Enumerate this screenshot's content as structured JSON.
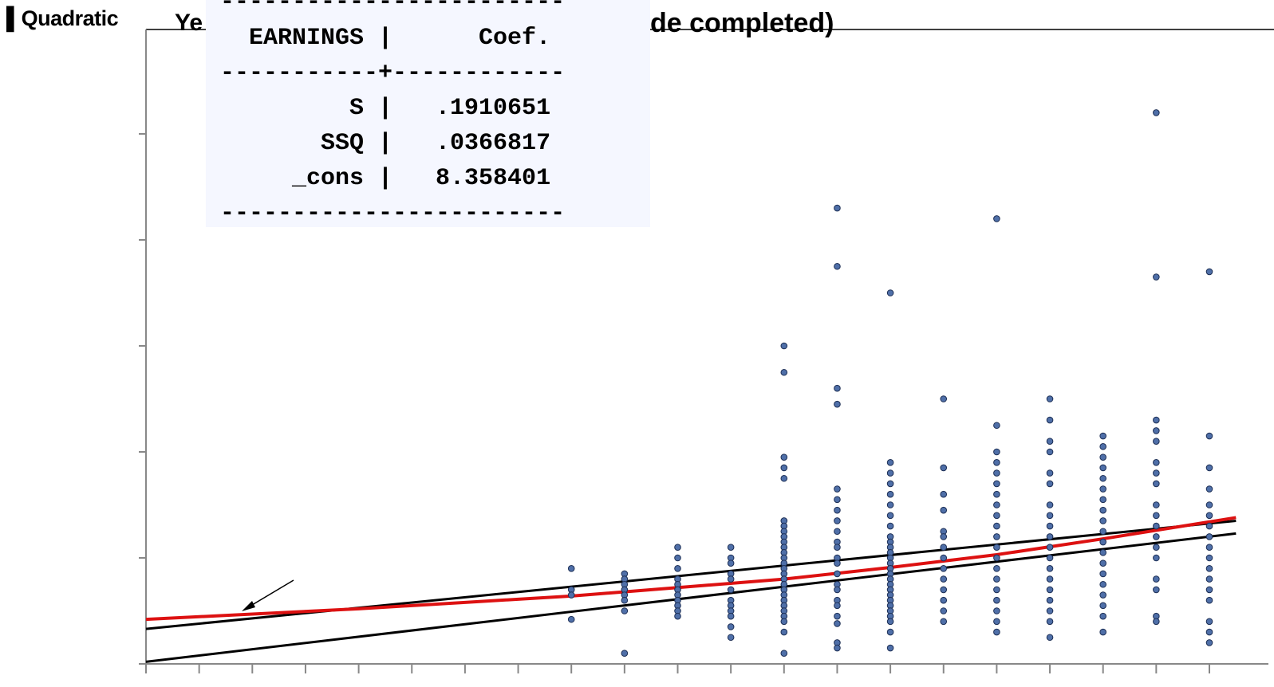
{
  "slide": {
    "top_left_label": "▌Quadratic",
    "title_fragment_left": "Ye",
    "title_fragment_right": "de completed)"
  },
  "regression_table": {
    "divider": "------------------------",
    "header": "  EARNINGS |      Coef.",
    "header_divider": "-----------+------------",
    "rows": [
      {
        "var": "S",
        "coef": ".1910651"
      },
      {
        "var": "SSQ",
        "coef": ".0366817"
      },
      {
        "var": "_cons",
        "coef": "8.358401"
      }
    ],
    "row_lines": [
      "         S |   .1910651",
      "       SSQ |   .0366817",
      "     _cons |   8.358401"
    ]
  },
  "chart_data": {
    "type": "scatter",
    "x_tick_count": 21,
    "y_tick_count": 6,
    "xlim": [
      0,
      20.5
    ],
    "ylim": [
      0,
      6
    ],
    "scatter_color": "#4f6fa8",
    "series": [
      {
        "type": "scatter",
        "points": [
          [
            8,
            0.9
          ],
          [
            8,
            0.7
          ],
          [
            8,
            0.65
          ],
          [
            8,
            0.42
          ],
          [
            9,
            0.85
          ],
          [
            9,
            0.8
          ],
          [
            9,
            0.75
          ],
          [
            9,
            0.7
          ],
          [
            9,
            0.65
          ],
          [
            9,
            0.6
          ],
          [
            9,
            0.5
          ],
          [
            9,
            0.1
          ],
          [
            10,
            1.1
          ],
          [
            10,
            1.0
          ],
          [
            10,
            0.9
          ],
          [
            10,
            0.8
          ],
          [
            10,
            0.75
          ],
          [
            10,
            0.7
          ],
          [
            10,
            0.65
          ],
          [
            10,
            0.6
          ],
          [
            10,
            0.55
          ],
          [
            10,
            0.5
          ],
          [
            10,
            0.45
          ],
          [
            11,
            1.1
          ],
          [
            11,
            1.0
          ],
          [
            11,
            0.95
          ],
          [
            11,
            0.85
          ],
          [
            11,
            0.8
          ],
          [
            11,
            0.7
          ],
          [
            11,
            0.6
          ],
          [
            11,
            0.55
          ],
          [
            11,
            0.5
          ],
          [
            11,
            0.45
          ],
          [
            11,
            0.35
          ],
          [
            11,
            0.25
          ],
          [
            12,
            3.0
          ],
          [
            12,
            2.75
          ],
          [
            12,
            1.95
          ],
          [
            12,
            1.85
          ],
          [
            12,
            1.75
          ],
          [
            12,
            1.35
          ],
          [
            12,
            1.3
          ],
          [
            12,
            1.25
          ],
          [
            12,
            1.2
          ],
          [
            12,
            1.15
          ],
          [
            12,
            1.1
          ],
          [
            12,
            1.05
          ],
          [
            12,
            1.0
          ],
          [
            12,
            0.95
          ],
          [
            12,
            0.9
          ],
          [
            12,
            0.85
          ],
          [
            12,
            0.8
          ],
          [
            12,
            0.75
          ],
          [
            12,
            0.7
          ],
          [
            12,
            0.65
          ],
          [
            12,
            0.6
          ],
          [
            12,
            0.55
          ],
          [
            12,
            0.5
          ],
          [
            12,
            0.45
          ],
          [
            12,
            0.4
          ],
          [
            12,
            0.3
          ],
          [
            12,
            0.1
          ],
          [
            13,
            4.3
          ],
          [
            13,
            3.75
          ],
          [
            13,
            2.6
          ],
          [
            13,
            2.45
          ],
          [
            13,
            1.65
          ],
          [
            13,
            1.55
          ],
          [
            13,
            1.45
          ],
          [
            13,
            1.35
          ],
          [
            13,
            1.25
          ],
          [
            13,
            1.15
          ],
          [
            13,
            1.1
          ],
          [
            13,
            1.0
          ],
          [
            13,
            0.95
          ],
          [
            13,
            0.85
          ],
          [
            13,
            0.75
          ],
          [
            13,
            0.7
          ],
          [
            13,
            0.6
          ],
          [
            13,
            0.55
          ],
          [
            13,
            0.45
          ],
          [
            13,
            0.38
          ],
          [
            13,
            0.2
          ],
          [
            13,
            0.15
          ],
          [
            14,
            3.5
          ],
          [
            14,
            1.9
          ],
          [
            14,
            1.8
          ],
          [
            14,
            1.7
          ],
          [
            14,
            1.6
          ],
          [
            14,
            1.5
          ],
          [
            14,
            1.4
          ],
          [
            14,
            1.3
          ],
          [
            14,
            1.2
          ],
          [
            14,
            1.15
          ],
          [
            14,
            1.1
          ],
          [
            14,
            1.05
          ],
          [
            14,
            1.0
          ],
          [
            14,
            0.95
          ],
          [
            14,
            0.9
          ],
          [
            14,
            0.85
          ],
          [
            14,
            0.8
          ],
          [
            14,
            0.75
          ],
          [
            14,
            0.7
          ],
          [
            14,
            0.65
          ],
          [
            14,
            0.6
          ],
          [
            14,
            0.55
          ],
          [
            14,
            0.5
          ],
          [
            14,
            0.45
          ],
          [
            14,
            0.4
          ],
          [
            14,
            0.3
          ],
          [
            14,
            0.15
          ],
          [
            15,
            2.5
          ],
          [
            15,
            1.85
          ],
          [
            15,
            1.6
          ],
          [
            15,
            1.45
          ],
          [
            15,
            1.25
          ],
          [
            15,
            1.2
          ],
          [
            15,
            1.1
          ],
          [
            15,
            1.0
          ],
          [
            15,
            0.9
          ],
          [
            15,
            0.8
          ],
          [
            15,
            0.7
          ],
          [
            15,
            0.6
          ],
          [
            15,
            0.5
          ],
          [
            15,
            0.4
          ],
          [
            16,
            4.2
          ],
          [
            16,
            2.25
          ],
          [
            16,
            2.0
          ],
          [
            16,
            1.9
          ],
          [
            16,
            1.8
          ],
          [
            16,
            1.7
          ],
          [
            16,
            1.6
          ],
          [
            16,
            1.5
          ],
          [
            16,
            1.4
          ],
          [
            16,
            1.3
          ],
          [
            16,
            1.2
          ],
          [
            16,
            1.1
          ],
          [
            16,
            1.0
          ],
          [
            16,
            0.9
          ],
          [
            16,
            0.8
          ],
          [
            16,
            0.7
          ],
          [
            16,
            0.6
          ],
          [
            16,
            0.5
          ],
          [
            16,
            0.4
          ],
          [
            16,
            0.3
          ],
          [
            17,
            2.5
          ],
          [
            17,
            2.3
          ],
          [
            17,
            2.1
          ],
          [
            17,
            2.0
          ],
          [
            17,
            1.8
          ],
          [
            17,
            1.7
          ],
          [
            17,
            1.5
          ],
          [
            17,
            1.4
          ],
          [
            17,
            1.3
          ],
          [
            17,
            1.2
          ],
          [
            17,
            1.1
          ],
          [
            17,
            1.0
          ],
          [
            17,
            0.9
          ],
          [
            17,
            0.8
          ],
          [
            17,
            0.7
          ],
          [
            17,
            0.6
          ],
          [
            17,
            0.5
          ],
          [
            17,
            0.4
          ],
          [
            17,
            0.25
          ],
          [
            18,
            2.15
          ],
          [
            18,
            2.05
          ],
          [
            18,
            1.95
          ],
          [
            18,
            1.85
          ],
          [
            18,
            1.75
          ],
          [
            18,
            1.65
          ],
          [
            18,
            1.55
          ],
          [
            18,
            1.45
          ],
          [
            18,
            1.35
          ],
          [
            18,
            1.25
          ],
          [
            18,
            1.15
          ],
          [
            18,
            1.05
          ],
          [
            18,
            0.95
          ],
          [
            18,
            0.85
          ],
          [
            18,
            0.75
          ],
          [
            18,
            0.65
          ],
          [
            18,
            0.55
          ],
          [
            18,
            0.45
          ],
          [
            18,
            0.3
          ],
          [
            19,
            5.2
          ],
          [
            19,
            3.65
          ],
          [
            19,
            2.3
          ],
          [
            19,
            2.2
          ],
          [
            19,
            2.1
          ],
          [
            19,
            1.9
          ],
          [
            19,
            1.8
          ],
          [
            19,
            1.7
          ],
          [
            19,
            1.5
          ],
          [
            19,
            1.4
          ],
          [
            19,
            1.3
          ],
          [
            19,
            1.2
          ],
          [
            19,
            1.1
          ],
          [
            19,
            1.0
          ],
          [
            19,
            0.8
          ],
          [
            19,
            0.7
          ],
          [
            19,
            0.45
          ],
          [
            19,
            0.4
          ],
          [
            20,
            3.7
          ],
          [
            20,
            2.15
          ],
          [
            20,
            1.85
          ],
          [
            20,
            1.65
          ],
          [
            20,
            1.5
          ],
          [
            20,
            1.4
          ],
          [
            20,
            1.3
          ],
          [
            20,
            1.2
          ],
          [
            20,
            1.1
          ],
          [
            20,
            1.0
          ],
          [
            20,
            0.9
          ],
          [
            20,
            0.8
          ],
          [
            20,
            0.7
          ],
          [
            20,
            0.6
          ],
          [
            20,
            0.4
          ],
          [
            20,
            0.3
          ],
          [
            20,
            0.2
          ]
        ]
      },
      {
        "type": "line",
        "color": "#000000",
        "x": [
          0,
          20.5
        ],
        "y": [
          0.02,
          1.23
        ]
      },
      {
        "type": "line",
        "color": "#000000",
        "x": [
          0,
          20.5
        ],
        "y": [
          0.33,
          1.35
        ]
      },
      {
        "type": "curve",
        "color": "#dd1111",
        "x": [
          0,
          2,
          4,
          6,
          8,
          10,
          12,
          14,
          16,
          18,
          20,
          20.5
        ],
        "y": [
          0.42,
          0.47,
          0.52,
          0.58,
          0.64,
          0.72,
          0.8,
          0.91,
          1.03,
          1.18,
          1.34,
          1.38
        ]
      }
    ]
  }
}
